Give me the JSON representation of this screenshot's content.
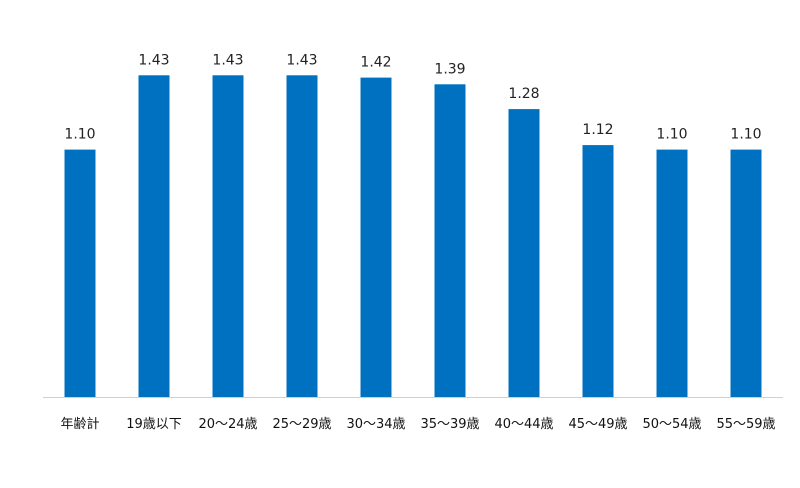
{
  "chart_data": {
    "type": "bar",
    "title": "",
    "xlabel": "",
    "ylabel": "",
    "categories": [
      "年齢計",
      "19歳以下",
      "20～24歳",
      "25～29歳",
      "30～34歳",
      "35～39歳",
      "40～44歳",
      "45～49歳",
      "50～54歳",
      "55～59歳"
    ],
    "values": [
      1.1,
      1.43,
      1.43,
      1.43,
      1.42,
      1.39,
      1.28,
      1.12,
      1.1,
      1.1
    ],
    "value_labels": [
      "1.10",
      "1.43",
      "1.43",
      "1.43",
      "1.42",
      "1.39",
      "1.28",
      "1.12",
      "1.10",
      "1.10"
    ],
    "ylim": [
      0,
      1.467
    ],
    "grid": false,
    "legend": "none",
    "bar_color": "#0070C0",
    "axis_color": "#d0d0d0"
  }
}
